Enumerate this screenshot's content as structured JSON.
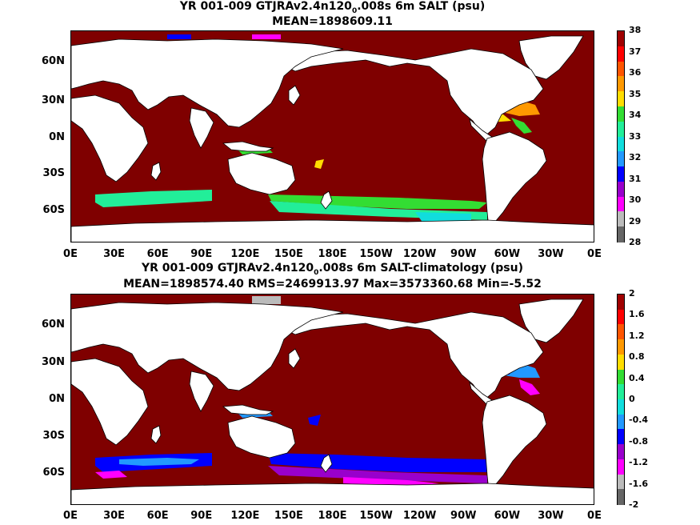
{
  "top": {
    "title_pre": "YR 001-009 GTJRAv2.4n120",
    "title_sub": "0",
    "title_post": ".008s 6m SALT (psu)",
    "stats": "MEAN=1898609.11",
    "colorbar_labels": [
      "38",
      "37",
      "36",
      "35",
      "34",
      "33",
      "32",
      "31",
      "30",
      "29",
      "28"
    ],
    "colorbar_colors": [
      "#a00000",
      "#ff0000",
      "#ff5500",
      "#ff9900",
      "#ffdd00",
      "#33dd33",
      "#22ee99",
      "#11dddd",
      "#2299ff",
      "#0000ff",
      "#9900cc",
      "#ff00ff",
      "#bbbbbb",
      "#666666"
    ]
  },
  "bottom": {
    "title_pre": "YR 001-009 GTJRAv2.4n120",
    "title_sub": "0",
    "title_post": ".008s 6m SALT-climatology (psu)",
    "stats": "MEAN=1898574.40   RMS=2469913.97   Max=3573360.68   Min=-5.52",
    "colorbar_labels": [
      "2",
      "1.6",
      "1.2",
      "0.8",
      "0.4",
      "0",
      "-0.4",
      "-0.8",
      "-1.2",
      "-1.6",
      "-2"
    ],
    "colorbar_colors": [
      "#a00000",
      "#ff0000",
      "#ff5500",
      "#ff9900",
      "#ffdd00",
      "#33dd33",
      "#22ee99",
      "#11dddd",
      "#2299ff",
      "#0000ff",
      "#9900cc",
      "#ff00ff",
      "#bbbbbb",
      "#666666"
    ]
  },
  "axes": {
    "lat_labels": [
      "60N",
      "30N",
      "0N",
      "30S",
      "60S"
    ],
    "lon_labels": [
      "0E",
      "30E",
      "60E",
      "90E",
      "120E",
      "150E",
      "180E",
      "150W",
      "120W",
      "90W",
      "60W",
      "30W",
      "0E"
    ]
  },
  "colors": {
    "ocean_fill": "#7f0000",
    "land": "#ffffff",
    "coast": "#000000"
  }
}
